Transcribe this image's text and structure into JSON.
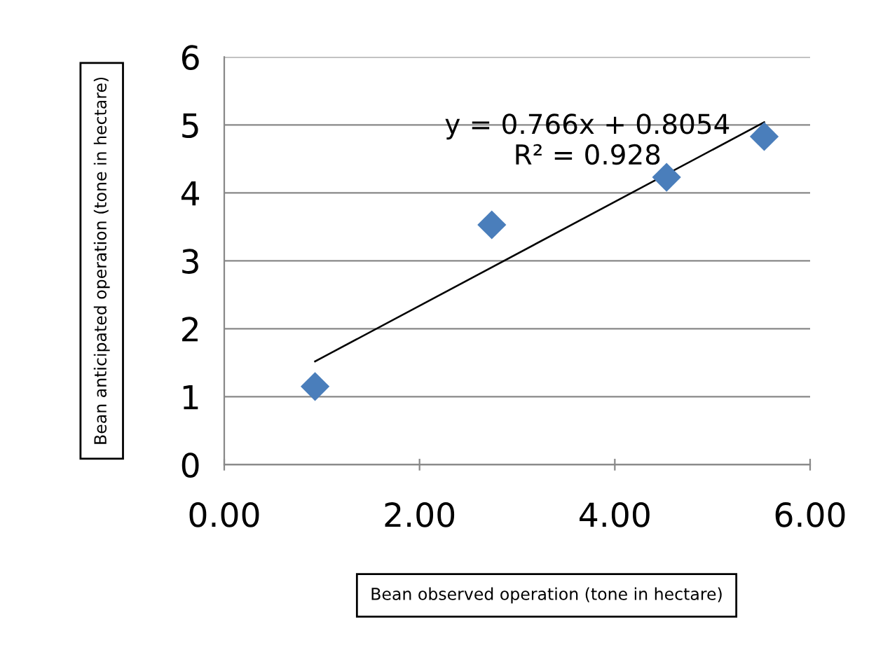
{
  "chart_data": {
    "type": "scatter",
    "xlabel": "Bean observed operation (tone in hectare)",
    "ylabel": "Bean anticipated operation (tone in hectare)",
    "annotations": [
      "y = 0.766x + 0.8054",
      "R² = 0.928"
    ],
    "series": [
      {
        "color": "#4a7ebb",
        "marker": "diamond",
        "x": [
          0.93,
          2.74,
          4.53,
          5.53
        ],
        "values": [
          1.15,
          3.53,
          4.23,
          4.83
        ]
      },
      {
        "type": "line",
        "color": "#000000",
        "marker": "none",
        "line_style": "solid",
        "x": [
          0.93,
          5.53
        ],
        "values": [
          1.52,
          5.04
        ]
      }
    ],
    "xlim": [
      0,
      6
    ],
    "ylim": [
      0,
      6
    ],
    "xticks": [
      {
        "value": 0,
        "label": "0.00"
      },
      {
        "value": 2,
        "label": "2.00"
      },
      {
        "value": 4,
        "label": "4.00"
      },
      {
        "value": 6,
        "label": "6.00"
      }
    ],
    "yticks": [
      0,
      1,
      2,
      3,
      4,
      5,
      6
    ],
    "grid": "y"
  }
}
